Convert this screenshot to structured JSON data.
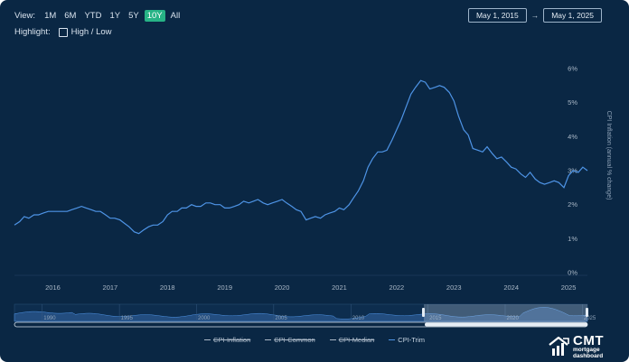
{
  "toolbar": {
    "view_label": "View:",
    "ranges": [
      "1M",
      "6M",
      "YTD",
      "1Y",
      "5Y",
      "10Y",
      "All"
    ],
    "active_range": "10Y",
    "highlight_label": "Highlight:",
    "highlight_option": "High / Low"
  },
  "date_range": {
    "from": "May 1, 2015",
    "arrow": "→",
    "to": "May 1, 2025"
  },
  "legend": [
    {
      "label": "CPI-Inflation",
      "enabled": false
    },
    {
      "label": "CPI-Common",
      "enabled": false
    },
    {
      "label": "CPI-Median",
      "enabled": false
    },
    {
      "label": "CPI-Trim",
      "enabled": true
    }
  ],
  "logo": {
    "line1": "CMT",
    "line2": "mortgage",
    "line3": "dashboard"
  },
  "colors": {
    "background": "#0a2744",
    "line": "#4e94e6",
    "accent": "#27b386",
    "navigator_fill": "#2f5f99"
  },
  "chart_data": {
    "type": "line",
    "title": "",
    "xlabel": "",
    "ylabel": "CPI Inflation (annual % change)",
    "x_range": [
      2015.33,
      2025.33
    ],
    "ylim": [
      0,
      6
    ],
    "y_ticks": [
      "0%",
      "1%",
      "2%",
      "3%",
      "4%",
      "5%",
      "6%"
    ],
    "x_ticks": [
      "2016",
      "2017",
      "2018",
      "2019",
      "2020",
      "2021",
      "2022",
      "2023",
      "2024",
      "2025"
    ],
    "grid": false,
    "legend_position": "bottom",
    "series": [
      {
        "name": "CPI-Trim",
        "x": [
          2015.33,
          2015.42,
          2015.5,
          2015.58,
          2015.67,
          2015.75,
          2015.83,
          2015.92,
          2016.0,
          2016.08,
          2016.17,
          2016.25,
          2016.33,
          2016.42,
          2016.5,
          2016.58,
          2016.67,
          2016.75,
          2016.83,
          2016.92,
          2017.0,
          2017.08,
          2017.17,
          2017.25,
          2017.33,
          2017.42,
          2017.5,
          2017.58,
          2017.67,
          2017.75,
          2017.83,
          2017.92,
          2018.0,
          2018.08,
          2018.17,
          2018.25,
          2018.33,
          2018.42,
          2018.5,
          2018.58,
          2018.67,
          2018.75,
          2018.83,
          2018.92,
          2019.0,
          2019.08,
          2019.17,
          2019.25,
          2019.33,
          2019.42,
          2019.5,
          2019.58,
          2019.67,
          2019.75,
          2019.83,
          2019.92,
          2020.0,
          2020.08,
          2020.17,
          2020.25,
          2020.33,
          2020.42,
          2020.5,
          2020.58,
          2020.67,
          2020.75,
          2020.83,
          2020.92,
          2021.0,
          2021.08,
          2021.17,
          2021.25,
          2021.33,
          2021.42,
          2021.5,
          2021.58,
          2021.67,
          2021.75,
          2021.83,
          2021.92,
          2022.0,
          2022.08,
          2022.17,
          2022.25,
          2022.33,
          2022.42,
          2022.5,
          2022.58,
          2022.67,
          2022.75,
          2022.83,
          2022.92,
          2023.0,
          2023.08,
          2023.17,
          2023.25,
          2023.33,
          2023.42,
          2023.5,
          2023.58,
          2023.67,
          2023.75,
          2023.83,
          2023.92,
          2024.0,
          2024.08,
          2024.17,
          2024.25,
          2024.33,
          2024.42,
          2024.5,
          2024.58,
          2024.67,
          2024.75,
          2024.83,
          2024.92,
          2025.0,
          2025.08,
          2025.17,
          2025.25,
          2025.33
        ],
        "y": [
          1.4,
          1.5,
          1.65,
          1.6,
          1.7,
          1.7,
          1.75,
          1.8,
          1.8,
          1.8,
          1.8,
          1.8,
          1.85,
          1.9,
          1.95,
          1.9,
          1.85,
          1.8,
          1.8,
          1.7,
          1.6,
          1.6,
          1.55,
          1.45,
          1.35,
          1.2,
          1.15,
          1.25,
          1.35,
          1.4,
          1.4,
          1.5,
          1.7,
          1.8,
          1.8,
          1.9,
          1.9,
          2.0,
          1.95,
          1.95,
          2.05,
          2.05,
          2.0,
          2.0,
          1.9,
          1.9,
          1.95,
          2.0,
          2.1,
          2.05,
          2.1,
          2.15,
          2.05,
          2.0,
          2.05,
          2.1,
          2.15,
          2.05,
          1.95,
          1.85,
          1.8,
          1.55,
          1.6,
          1.65,
          1.6,
          1.7,
          1.75,
          1.8,
          1.9,
          1.85,
          2.0,
          2.2,
          2.4,
          2.7,
          3.1,
          3.35,
          3.55,
          3.55,
          3.6,
          3.9,
          4.2,
          4.5,
          4.9,
          5.25,
          5.45,
          5.65,
          5.6,
          5.4,
          5.45,
          5.5,
          5.45,
          5.3,
          5.05,
          4.6,
          4.2,
          4.05,
          3.65,
          3.6,
          3.55,
          3.7,
          3.5,
          3.35,
          3.4,
          3.25,
          3.1,
          3.05,
          2.9,
          2.8,
          2.95,
          2.75,
          2.65,
          2.6,
          2.65,
          2.7,
          2.65,
          2.5,
          2.85,
          3.0,
          2.95,
          3.1,
          3.0
        ]
      }
    ],
    "navigator": {
      "x_ticks": [
        "1990",
        "1995",
        "2000",
        "2005",
        "2010",
        "2015",
        "2020",
        "2025"
      ]
    }
  }
}
